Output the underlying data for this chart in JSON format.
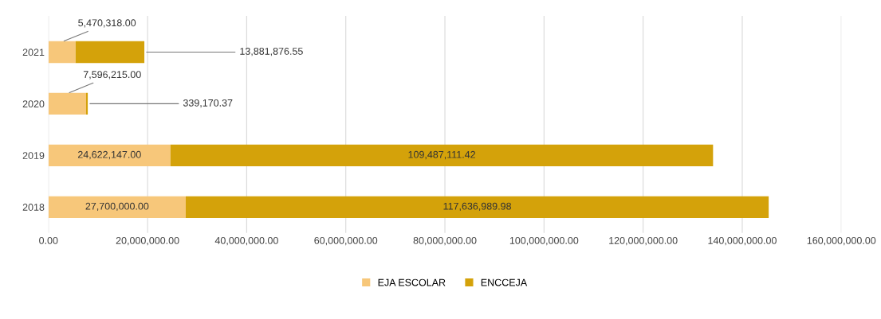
{
  "chart_data": {
    "type": "bar",
    "orientation": "horizontal",
    "stacked": true,
    "categories": [
      "2021",
      "2020",
      "2019",
      "2018"
    ],
    "series": [
      {
        "name": "EJA ESCOLAR",
        "color": "#f7c77a",
        "values": [
          5470318.0,
          7596215.0,
          24622147.0,
          27700000.0
        ],
        "value_labels": [
          "5,470,318.00",
          "7,596,215.00",
          "24,622,147.00",
          "27,700,000.00"
        ]
      },
      {
        "name": "ENCCEJA",
        "color": "#d4a20a",
        "values": [
          13881876.55,
          339170.37,
          109487111.42,
          117636989.98
        ],
        "value_labels": [
          "13,881,876.55",
          "339,170.37",
          "109,487,111.42",
          "117,636,989.98"
        ]
      }
    ],
    "xlim": [
      0,
      160000000
    ],
    "xticks": [
      {
        "value": 0,
        "label": "0.00"
      },
      {
        "value": 20000000,
        "label": "20,000,000.00"
      },
      {
        "value": 40000000,
        "label": "40,000,000.00"
      },
      {
        "value": 60000000,
        "label": "60,000,000.00"
      },
      {
        "value": 80000000,
        "label": "80,000,000.00"
      },
      {
        "value": 100000000,
        "label": "100,000,000.00"
      },
      {
        "value": 120000000,
        "label": "120,000,000.00"
      },
      {
        "value": 140000000,
        "label": "140,000,000.00"
      },
      {
        "value": 160000000,
        "label": "160,000,000.00"
      }
    ],
    "grid": "x",
    "legend": "bottom"
  }
}
